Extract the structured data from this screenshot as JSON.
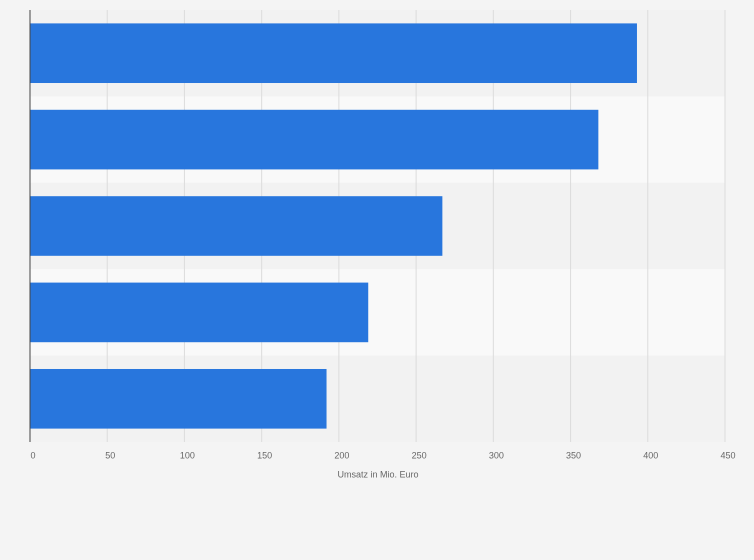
{
  "chart_data": {
    "type": "hbar",
    "x_label": "Umsatz in Mio. Euro",
    "categories": [
      null,
      null,
      null,
      null,
      null
    ],
    "values": [
      393,
      368,
      267,
      219,
      192
    ],
    "color": "#2876dd",
    "xlim": [
      0,
      450
    ],
    "xticks": [
      0,
      50,
      100,
      150,
      200,
      250,
      300,
      350,
      400,
      450
    ],
    "grid": true
  }
}
